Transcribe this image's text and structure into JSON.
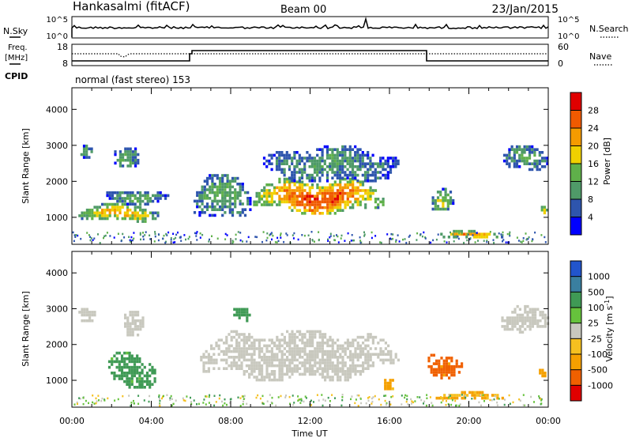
{
  "header": {
    "station": "Hankasalmi (fitACF)",
    "beam": "Beam 00",
    "date": "23/Jan/2015"
  },
  "noise_panel": {
    "left_label": "N.Sky",
    "left_top_tick": "10^5",
    "left_bottom_tick": "10^0",
    "right_label": "N.Search",
    "right_top_tick": "10^5",
    "right_bottom_tick": "10^0"
  },
  "freq_panel": {
    "left_label_line1": "Freq.",
    "left_label_line2": "[MHz]",
    "left_top_tick": "18",
    "left_bottom_tick": "8",
    "right_label": "Nave",
    "right_top_tick": "60",
    "right_bottom_tick": "0",
    "cpid_label": "CPID",
    "mode_text": "normal (fast stereo) 153"
  },
  "chart_data": [
    {
      "type": "heatmap",
      "panel": "power",
      "ylabel": "Slant Range [km]",
      "yticks": [
        "1000",
        "2000",
        "3000",
        "4000"
      ],
      "ylim": [
        250,
        4600
      ],
      "xlim": [
        0,
        24
      ],
      "colorbar": {
        "label": "Power [dB]",
        "ticks": [
          "4",
          "8",
          "12",
          "16",
          "20",
          "24",
          "28"
        ],
        "range": [
          0,
          32
        ],
        "colors": [
          "#0000ff",
          "#2e55ad",
          "#4f9a68",
          "#5fb04a",
          "#f0d000",
          "#f59b00",
          "#f05a00",
          "#e00000"
        ]
      },
      "echo_regions": [
        {
          "t0": 0.3,
          "t1": 1.0,
          "r0": 2700,
          "r1": 3100,
          "level": 10
        },
        {
          "t0": 0.2,
          "t1": 4.4,
          "r0": 900,
          "r1": 1400,
          "level": 18
        },
        {
          "t0": 1.6,
          "t1": 4.8,
          "r0": 1400,
          "r1": 1800,
          "level": 11
        },
        {
          "t0": 2.0,
          "t1": 3.4,
          "r0": 2400,
          "r1": 3100,
          "level": 10
        },
        {
          "t0": 6.0,
          "t1": 9.0,
          "r0": 900,
          "r1": 2200,
          "level": 11
        },
        {
          "t0": 9.0,
          "t1": 15.7,
          "r0": 1100,
          "r1": 2100,
          "level": 24
        },
        {
          "t0": 9.5,
          "t1": 16.6,
          "r0": 2000,
          "r1": 3000,
          "level": 9
        },
        {
          "t0": 18.0,
          "t1": 19.2,
          "r0": 1200,
          "r1": 1900,
          "level": 14
        },
        {
          "t0": 18.3,
          "t1": 21.8,
          "r0": 450,
          "r1": 650,
          "level": 20
        },
        {
          "t0": 21.6,
          "t1": 24.0,
          "r0": 2300,
          "r1": 3000,
          "level": 10
        },
        {
          "t0": 23.5,
          "t1": 23.9,
          "r0": 1100,
          "r1": 1400,
          "level": 16
        }
      ]
    },
    {
      "type": "heatmap",
      "panel": "velocity",
      "ylabel": "Slant Range [km]",
      "yticks": [
        "1000",
        "2000",
        "3000",
        "4000"
      ],
      "ylim": [
        250,
        4600
      ],
      "xlim": [
        0,
        24
      ],
      "xticks": [
        "00:00",
        "04:00",
        "08:00",
        "12:00",
        "16:00",
        "20:00",
        "00:00"
      ],
      "xlabel": "Time UT",
      "colorbar": {
        "label": "Velocity [m s^-1]",
        "ticks": [
          "1000",
          "500",
          "100",
          "25",
          "-25",
          "-100",
          "-500",
          "-1000"
        ],
        "colors": [
          "#2255cc",
          "#3a7fa0",
          "#3f9a55",
          "#66c23c",
          "#c8c8be",
          "#f5c020",
          "#f5a000",
          "#f06000",
          "#e00000"
        ]
      },
      "echo_regions": [
        {
          "t0": 0.2,
          "t1": 1.2,
          "r0": 2700,
          "r1": 3100,
          "velocity": 0
        },
        {
          "t0": 1.7,
          "t1": 4.3,
          "r0": 800,
          "r1": 1800,
          "velocity": 150
        },
        {
          "t0": 2.5,
          "t1": 3.6,
          "r0": 2300,
          "r1": 3100,
          "velocity": 0
        },
        {
          "t0": 6.2,
          "t1": 16.4,
          "r0": 1000,
          "r1": 2400,
          "velocity": 0
        },
        {
          "t0": 8.0,
          "t1": 9.0,
          "r0": 2700,
          "r1": 3100,
          "velocity": 300
        },
        {
          "t0": 15.6,
          "t1": 16.3,
          "r0": 800,
          "r1": 1200,
          "velocity": -150
        },
        {
          "t0": 17.8,
          "t1": 19.6,
          "r0": 1100,
          "r1": 1900,
          "velocity": -700
        },
        {
          "t0": 18.2,
          "t1": 21.8,
          "r0": 450,
          "r1": 700,
          "velocity": -100
        },
        {
          "t0": 21.5,
          "t1": 24.0,
          "r0": 2300,
          "r1": 3100,
          "velocity": 0
        },
        {
          "t0": 23.4,
          "t1": 23.9,
          "r0": 1100,
          "r1": 1400,
          "velocity": -150
        }
      ]
    }
  ]
}
